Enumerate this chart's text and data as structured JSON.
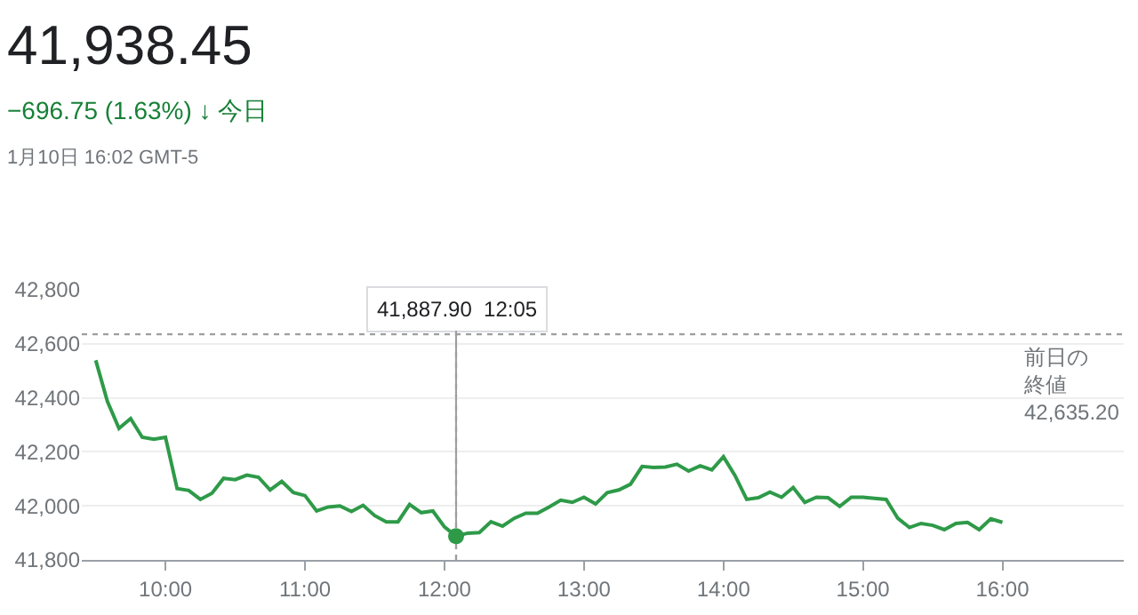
{
  "chart_data": {
    "type": "line",
    "title": "41,938.45",
    "subtitle": "−696.75 (1.63%) ↓ 今日",
    "annotations": [
      "1月10日 16:02 GMT-5",
      {
        "text": "41,887.90  12:05",
        "x": 12.0833,
        "y": 41887.9
      }
    ],
    "x": [
      9.5,
      9.5833,
      9.6667,
      9.75,
      9.8333,
      9.9167,
      10.0,
      10.0833,
      10.1667,
      10.25,
      10.3333,
      10.4167,
      10.5,
      10.5833,
      10.6667,
      10.75,
      10.8333,
      10.9167,
      11.0,
      11.0833,
      11.1667,
      11.25,
      11.3333,
      11.4167,
      11.5,
      11.5833,
      11.6667,
      11.75,
      11.8333,
      11.9167,
      12.0,
      12.0833,
      12.1667,
      12.25,
      12.3333,
      12.4167,
      12.5,
      12.5833,
      12.6667,
      12.75,
      12.8333,
      12.9167,
      13.0,
      13.0833,
      13.1667,
      13.25,
      13.3333,
      13.4167,
      13.5,
      13.5833,
      13.6667,
      13.75,
      13.8333,
      13.9167,
      14.0,
      14.0833,
      14.1667,
      14.25,
      14.3333,
      14.4167,
      14.5,
      14.5833,
      14.6667,
      14.75,
      14.8333,
      14.9167,
      15.0,
      15.0833,
      15.1667,
      15.25,
      15.3333,
      15.4167,
      15.5,
      15.5833,
      15.6667,
      15.75,
      15.8333,
      15.9167,
      16.0
    ],
    "series": [
      {
        "color": "#2e9a48",
        "values": [
          42539,
          42387,
          42287,
          42323,
          42254,
          42247,
          42254,
          42064,
          42057,
          42024,
          42047,
          42102,
          42097,
          42114,
          42106,
          42059,
          42091,
          42049,
          42038,
          41981,
          41996,
          42000,
          41979,
          42002,
          41964,
          41941,
          41941,
          42005,
          41975,
          41981,
          41922,
          41887.9,
          41899,
          41901,
          41941,
          41925,
          41954,
          41973,
          41973,
          41996,
          42021,
          42013,
          42032,
          42007,
          42049,
          42059,
          42080,
          42146,
          42142,
          42144,
          42154,
          42129,
          42148,
          42133,
          42182,
          42112,
          42024,
          42030,
          42051,
          42032,
          42068,
          42013,
          42032,
          42030,
          41998,
          42032,
          42032,
          42028,
          42024,
          41954,
          41920,
          41935,
          41928,
          41912,
          41935,
          41939,
          41912,
          41952,
          41939
        ]
      },
      {
        "type": "scatter",
        "color": "#2e9a48",
        "x": [
          12.0833
        ],
        "values": [
          41887.9
        ],
        "marker": "circle"
      }
    ],
    "xlim": [
      9.4,
      16.87
    ],
    "ylim": [
      41800,
      42800
    ],
    "xticks": [
      {
        "value": 10,
        "label": "10:00"
      },
      {
        "value": 11,
        "label": "11:00"
      },
      {
        "value": 12,
        "label": "12:00"
      },
      {
        "value": 13,
        "label": "13:00"
      },
      {
        "value": 14,
        "label": "14:00"
      },
      {
        "value": 15,
        "label": "15:00"
      },
      {
        "value": 16,
        "label": "16:00"
      }
    ],
    "yticks": [
      {
        "value": 41800,
        "label": "41,800"
      },
      {
        "value": 42000,
        "label": "42,000"
      },
      {
        "value": 42200,
        "label": "42,200"
      },
      {
        "value": 42400,
        "label": "42,400"
      },
      {
        "value": 42600,
        "label": "42,600"
      },
      {
        "value": 42800,
        "label": "42,800"
      }
    ],
    "grid": "y",
    "legend": false,
    "marker": "none",
    "line_style": "solid",
    "ref_lines": [
      {
        "axis": "y",
        "value": 42635.2,
        "label": "前日の終値\n42,635.20",
        "color": "#9e9e9e",
        "line_style": "dotted"
      },
      {
        "axis": "x",
        "value": 12.0833,
        "color": "#9e9e9e",
        "line_style": "dotted"
      }
    ]
  }
}
